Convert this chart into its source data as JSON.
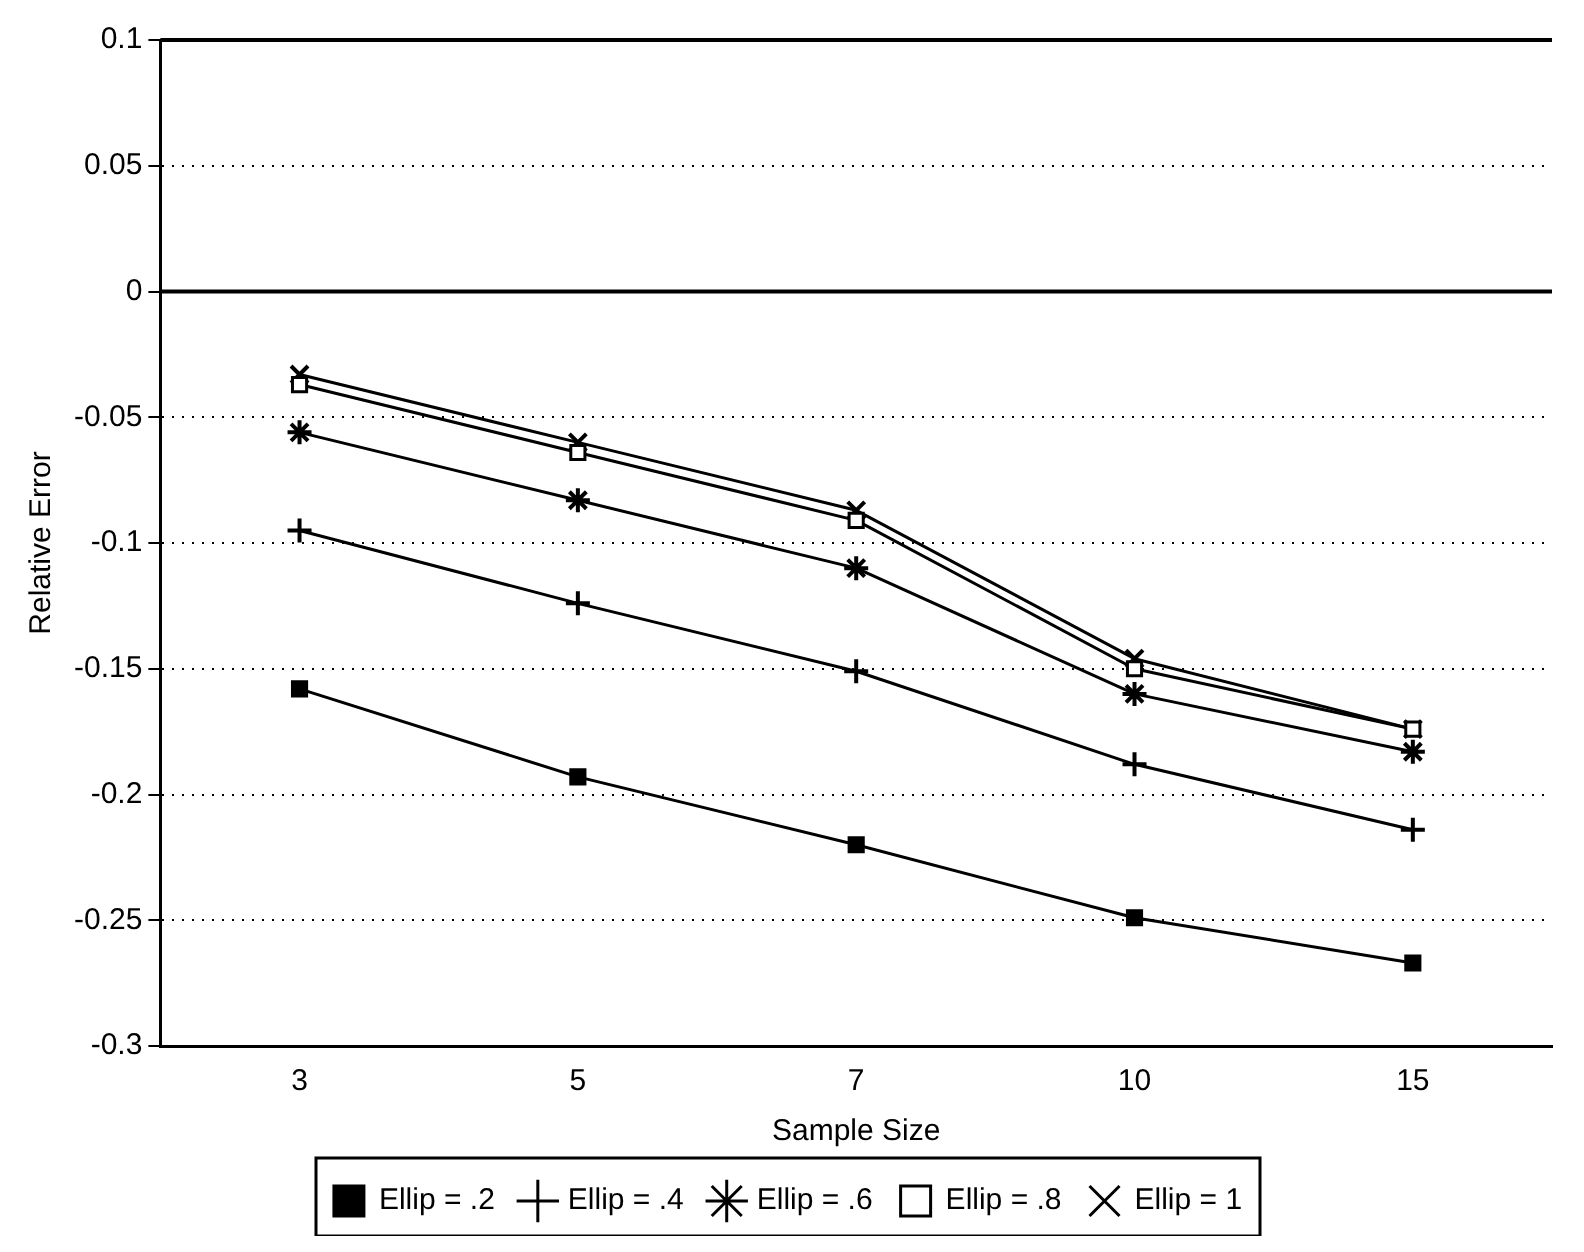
{
  "chart_data": {
    "type": "line",
    "xlabel": "Sample Size",
    "ylabel": "Relative Error",
    "categories": [
      "3",
      "5",
      "7",
      "10",
      "15"
    ],
    "series": [
      {
        "name": "Ellip = .2",
        "color": "#000000",
        "marker": "square",
        "values": [
          -0.158,
          -0.193,
          -0.22,
          -0.249,
          -0.267
        ]
      },
      {
        "name": "Ellip = .4",
        "color": "#000000",
        "marker": "cross",
        "values": [
          -0.095,
          -0.124,
          -0.151,
          -0.188,
          -0.214
        ]
      },
      {
        "name": "Ellip = .6",
        "color": "#000000",
        "marker": "cross",
        "values": [
          -0.056,
          -0.083,
          -0.11,
          -0.16,
          -0.183
        ]
      },
      {
        "name": "Ellip = .8",
        "color": "#000000",
        "marker": "square",
        "values": [
          -0.037,
          -0.064,
          -0.091,
          -0.15,
          -0.174
        ]
      },
      {
        "name": "Ellip = 1",
        "color": "#000000",
        "marker": "cross",
        "values": [
          -0.033,
          -0.06,
          -0.087,
          -0.146,
          -0.174
        ]
      }
    ],
    "ylim": [
      -0.3,
      0.1
    ],
    "yticks": [
      -0.3,
      -0.25,
      -0.2,
      -0.15,
      -0.1,
      -0.05,
      0,
      0.05,
      0.1
    ],
    "ref_lines": [
      {
        "axis": "y",
        "value": 0,
        "color": "#000000",
        "line_style": "solid"
      }
    ],
    "grid": "y",
    "legend": "bottom",
    "line_style": "solid"
  }
}
